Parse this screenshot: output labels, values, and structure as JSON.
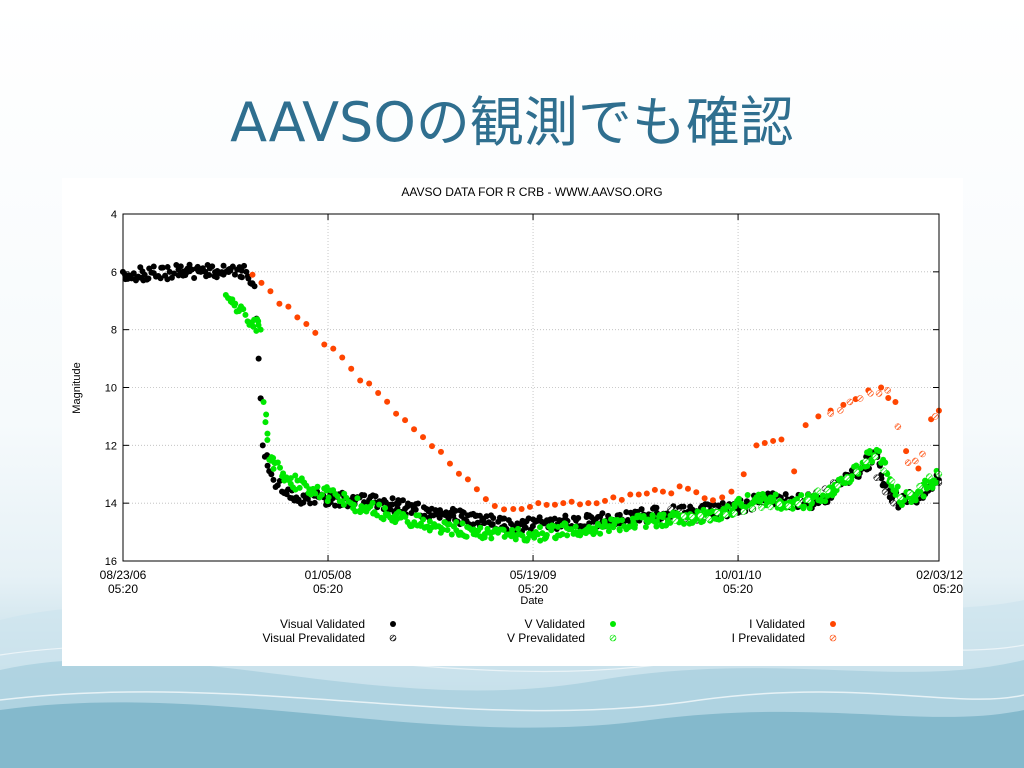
{
  "slide": {
    "title": "AAVSOの観測でも確認"
  },
  "chart_data": {
    "type": "scatter",
    "title": "AAVSO DATA FOR R CRB - WWW.AAVSO.ORG",
    "xlabel": "Date",
    "ylabel": "Magnitude",
    "x_ticks": [
      "08/23/06 05:20",
      "01/05/08 05:20",
      "05/19/09 05:20",
      "10/01/10 05:20",
      "02/03/12 05:20"
    ],
    "xlim": [
      "08/23/06 05:20",
      "02/03/12 05:20"
    ],
    "ylim": [
      4,
      16
    ],
    "y_inverted": true,
    "y_ticks": [
      4,
      6,
      8,
      10,
      12,
      14,
      16
    ],
    "grid": true,
    "legend_position": "bottom",
    "colors": {
      "visual": "#000000",
      "v": "#00e800",
      "i": "#ff4500"
    },
    "series": [
      {
        "name": "Visual Validated",
        "marker": "filled",
        "color": "#000000",
        "points": [
          [
            "08/23/06",
            6.0
          ],
          [
            "10/15/06",
            6.1
          ],
          [
            "12/15/06",
            6.0
          ],
          [
            "03/01/07",
            6.0
          ],
          [
            "05/01/07",
            6.0
          ],
          [
            "06/20/07",
            6.0
          ],
          [
            "07/10/07",
            6.5
          ],
          [
            "07/20/07",
            9.0
          ],
          [
            "07/30/07",
            12.0
          ],
          [
            "08/20/07",
            13.0
          ],
          [
            "09/15/07",
            13.6
          ],
          [
            "10/20/07",
            13.8
          ],
          [
            "12/15/07",
            13.8
          ],
          [
            "03/01/08",
            13.9
          ],
          [
            "05/15/08",
            14.0
          ],
          [
            "08/01/08",
            14.2
          ],
          [
            "10/15/08",
            14.4
          ],
          [
            "01/15/09",
            14.6
          ],
          [
            "04/01/09",
            14.8
          ],
          [
            "06/15/09",
            14.7
          ],
          [
            "09/01/09",
            14.6
          ],
          [
            "11/15/09",
            14.6
          ],
          [
            "03/01/10",
            14.4
          ],
          [
            "06/01/10",
            14.3
          ],
          [
            "09/15/10",
            14.2
          ],
          [
            "12/01/10",
            13.9
          ],
          [
            "02/15/11",
            13.9
          ],
          [
            "04/15/11",
            14.0
          ],
          [
            "06/15/11",
            13.3
          ],
          [
            "08/01/11",
            12.8
          ],
          [
            "09/01/11",
            12.3
          ],
          [
            "10/01/11",
            13.6
          ],
          [
            "11/01/11",
            14.0
          ],
          [
            "12/15/11",
            13.7
          ],
          [
            "02/03/12",
            13.2
          ]
        ]
      },
      {
        "name": "Visual Prevalidated",
        "marker": "hatched",
        "color": "#000000",
        "points": [
          [
            "04/20/10",
            14.2
          ],
          [
            "06/01/10",
            14.6
          ],
          [
            "09/15/10",
            14.2
          ],
          [
            "12/15/10",
            13.9
          ],
          [
            "03/01/11",
            13.9
          ],
          [
            "05/01/11",
            13.5
          ],
          [
            "07/01/11",
            13.1
          ],
          [
            "08/15/11",
            12.6
          ],
          [
            "10/15/11",
            14.0
          ],
          [
            "12/15/11",
            13.7
          ],
          [
            "02/03/12",
            13.3
          ]
        ]
      },
      {
        "name": "V Validated",
        "marker": "filled",
        "color": "#00e800",
        "points": [
          [
            "05/01/07",
            6.8
          ],
          [
            "07/25/07",
            8.0
          ],
          [
            "08/01/07",
            10.5
          ],
          [
            "08/15/07",
            12.5
          ],
          [
            "10/01/07",
            13.2
          ],
          [
            "03/01/08",
            14.0
          ],
          [
            "07/01/08",
            14.5
          ],
          [
            "10/01/08",
            14.8
          ],
          [
            "02/01/09",
            15.0
          ],
          [
            "05/15/09",
            15.1
          ],
          [
            "08/15/09",
            14.9
          ],
          [
            "11/15/09",
            14.8
          ],
          [
            "03/01/10",
            14.6
          ],
          [
            "06/01/10",
            14.5
          ],
          [
            "09/01/10",
            14.3
          ],
          [
            "11/15/10",
            13.8
          ],
          [
            "02/01/11",
            14.0
          ],
          [
            "04/15/11",
            13.9
          ],
          [
            "06/15/11",
            13.3
          ],
          [
            "08/01/11",
            12.6
          ],
          [
            "09/10/11",
            12.2
          ],
          [
            "10/10/11",
            13.4
          ],
          [
            "11/10/11",
            13.9
          ],
          [
            "12/20/11",
            13.6
          ],
          [
            "02/03/12",
            13.0
          ]
        ]
      },
      {
        "name": "V Prevalidated",
        "marker": "hatched",
        "color": "#00e800",
        "points": [
          [
            "05/01/10",
            14.6
          ],
          [
            "09/01/10",
            14.4
          ],
          [
            "02/01/11",
            14.1
          ],
          [
            "06/01/11",
            13.4
          ],
          [
            "09/01/11",
            12.4
          ],
          [
            "11/01/11",
            13.8
          ],
          [
            "02/03/12",
            13.0
          ]
        ]
      },
      {
        "name": "I Validated",
        "marker": "filled",
        "color": "#ff4500",
        "points": [
          [
            "07/05/07",
            6.1
          ],
          [
            "02/15/09",
            14.1
          ],
          [
            "04/01/09",
            14.2
          ],
          [
            "06/01/09",
            14.0
          ],
          [
            "08/01/09",
            14.0
          ],
          [
            "10/01/09",
            14.0
          ],
          [
            "12/01/09",
            13.8
          ],
          [
            "02/01/10",
            13.7
          ],
          [
            "04/01/10",
            13.6
          ],
          [
            "06/01/10",
            13.5
          ],
          [
            "08/01/10",
            13.9
          ],
          [
            "09/15/10",
            13.6
          ],
          [
            "10/15/10",
            13.0
          ],
          [
            "11/15/10",
            12.0
          ],
          [
            "01/15/11",
            11.8
          ],
          [
            "02/15/11",
            12.9
          ],
          [
            "03/15/11",
            11.3
          ],
          [
            "04/15/11",
            11.0
          ],
          [
            "05/15/11",
            10.8
          ],
          [
            "06/15/11",
            10.6
          ],
          [
            "07/15/11",
            10.4
          ],
          [
            "08/15/11",
            10.1
          ],
          [
            "09/15/11",
            10.0
          ],
          [
            "10/20/11",
            10.5
          ],
          [
            "11/15/11",
            12.2
          ],
          [
            "12/15/11",
            12.8
          ],
          [
            "01/15/12",
            11.1
          ],
          [
            "02/03/12",
            10.8
          ]
        ]
      },
      {
        "name": "I Prevalidated",
        "marker": "hatched",
        "color": "#ff4500",
        "points": [
          [
            "05/15/11",
            10.9
          ],
          [
            "07/01/11",
            10.5
          ],
          [
            "08/20/11",
            10.2
          ],
          [
            "10/01/11",
            10.1
          ],
          [
            "11/20/11",
            12.6
          ],
          [
            "12/25/11",
            12.3
          ],
          [
            "01/25/12",
            11.0
          ]
        ]
      }
    ]
  }
}
